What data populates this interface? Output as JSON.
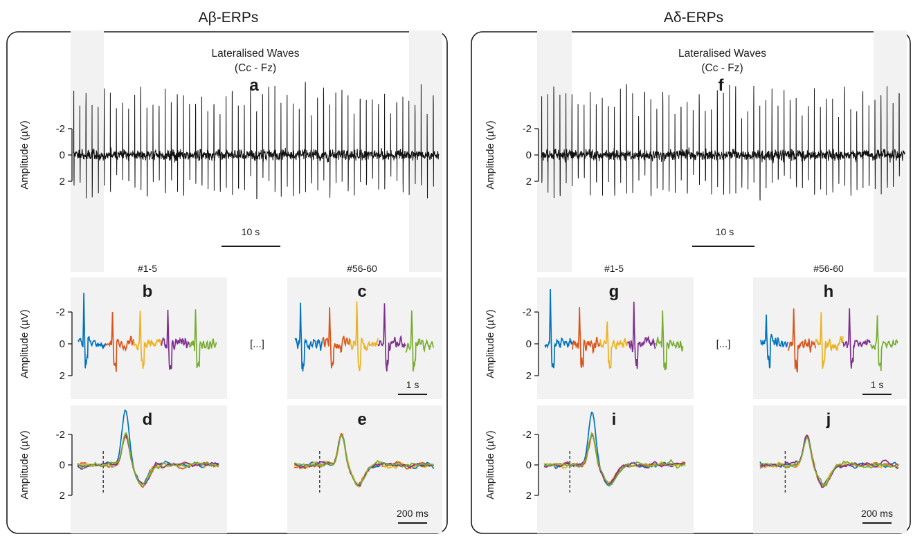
{
  "chart_data": [
    {
      "panel": "ab-erps",
      "title": "Aβ-ERPs",
      "ylabel": "Amplitude (µV)",
      "main": {
        "letter": "a",
        "title_line1": "Lateralised Waves",
        "title_line2": "(Cc - Fz)",
        "type": "line",
        "ylim": [
          -2,
          2
        ],
        "yticks": [
          "-2",
          "0",
          "2"
        ],
        "y_inverted": true,
        "scale_bar": "10 s",
        "n_trials": 60,
        "highlighted_trial_groups": [
          "#1-5",
          "#56-60"
        ]
      },
      "subpanels": [
        {
          "letter": "b",
          "label": "#1-5",
          "type": "line",
          "yticks": [
            "-2",
            "0",
            "2"
          ],
          "series_colors": [
            "#0072BD",
            "#D95319",
            "#EDB120",
            "#7E2F8E",
            "#77AC30"
          ],
          "segments": 5
        },
        {
          "letter": "c",
          "label": "#56-60",
          "type": "line",
          "yticks": [
            "-2",
            "0",
            "2"
          ],
          "scale_bar": "1 s",
          "series_colors": [
            "#0072BD",
            "#D95319",
            "#EDB120",
            "#7E2F8E",
            "#77AC30"
          ],
          "segments": 5
        },
        {
          "letter": "d",
          "type": "line",
          "yticks": [
            "-2",
            "0",
            "2"
          ],
          "overlay": true,
          "stimulus_marker": true,
          "series_colors": [
            "#0072BD",
            "#D95319",
            "#EDB120",
            "#7E2F8E",
            "#77AC30"
          ]
        },
        {
          "letter": "e",
          "type": "line",
          "yticks": [
            "-2",
            "0",
            "2"
          ],
          "overlay": true,
          "stimulus_marker": true,
          "scale_bar": "200 ms",
          "series_colors": [
            "#0072BD",
            "#D95319",
            "#EDB120",
            "#7E2F8E",
            "#77AC30"
          ]
        }
      ],
      "ellipsis": "[...]"
    },
    {
      "panel": "ad-erps",
      "title": "Aδ-ERPs",
      "ylabel": "Amplitude (µV)",
      "main": {
        "letter": "f",
        "title_line1": "Lateralised Waves",
        "title_line2": "(Cc - Fz)",
        "type": "line",
        "ylim": [
          -2,
          2
        ],
        "yticks": [
          "-2",
          "0",
          "2"
        ],
        "y_inverted": true,
        "scale_bar": "10 s",
        "n_trials": 60,
        "highlighted_trial_groups": [
          "#1-5",
          "#56-60"
        ]
      },
      "subpanels": [
        {
          "letter": "g",
          "label": "#1-5",
          "type": "line",
          "yticks": [
            "-2",
            "0",
            "2"
          ],
          "series_colors": [
            "#0072BD",
            "#D95319",
            "#EDB120",
            "#7E2F8E",
            "#77AC30"
          ],
          "segments": 5
        },
        {
          "letter": "h",
          "label": "#56-60",
          "type": "line",
          "yticks": [
            "-2",
            "0",
            "2"
          ],
          "scale_bar": "1 s",
          "series_colors": [
            "#0072BD",
            "#D95319",
            "#EDB120",
            "#7E2F8E",
            "#77AC30"
          ],
          "segments": 5
        },
        {
          "letter": "i",
          "type": "line",
          "yticks": [
            "-2",
            "0",
            "2"
          ],
          "overlay": true,
          "stimulus_marker": true,
          "series_colors": [
            "#0072BD",
            "#D95319",
            "#EDB120",
            "#7E2F8E",
            "#77AC30"
          ]
        },
        {
          "letter": "j",
          "type": "line",
          "yticks": [
            "-2",
            "0",
            "2"
          ],
          "overlay": true,
          "stimulus_marker": true,
          "scale_bar": "200 ms",
          "series_colors": [
            "#0072BD",
            "#D95319",
            "#EDB120",
            "#7E2F8E",
            "#77AC30"
          ]
        }
      ],
      "ellipsis": "[...]"
    }
  ]
}
